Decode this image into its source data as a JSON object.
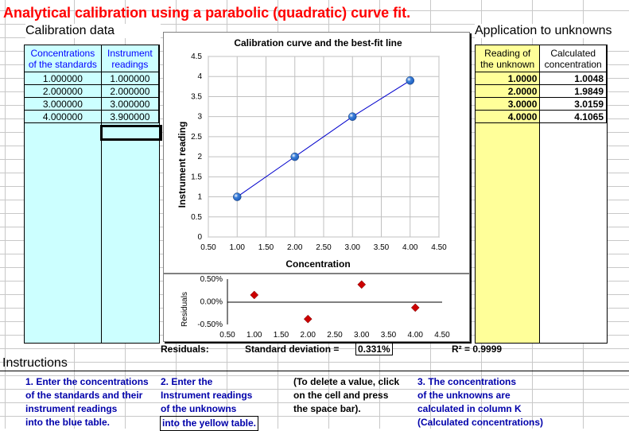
{
  "title": "Analytical calibration using a parabolic (quadratic) curve fit.",
  "calibration": {
    "header": "Calibration data",
    "col1_line1": "Concentrations",
    "col1_line2": "of the standards",
    "col2_line1": "Instrument",
    "col2_line2": "readings",
    "rows": [
      {
        "conc": "1.000000",
        "reading": "1.000000"
      },
      {
        "conc": "2.000000",
        "reading": "2.000000"
      },
      {
        "conc": "3.000000",
        "reading": "3.000000"
      },
      {
        "conc": "4.000000",
        "reading": "3.900000"
      }
    ],
    "colors": {
      "fill": "#ccffff"
    }
  },
  "unknowns": {
    "header": "Application to unknowns",
    "col1_line1": "Reading of",
    "col1_line2": "the unknown",
    "col2_line1": "Calculated",
    "col2_line2": "concentration",
    "rows": [
      {
        "reading": "1.0000",
        "calc": "1.0048"
      },
      {
        "reading": "2.0000",
        "calc": "1.9849"
      },
      {
        "reading": "3.0000",
        "calc": "3.0159"
      },
      {
        "reading": "4.0000",
        "calc": "4.1065"
      }
    ],
    "colors": {
      "fill": "#ffff99"
    }
  },
  "stats": {
    "residuals_label": "Residuals:",
    "stddev_label": "Standard  deviation =",
    "stddev_value": "0.331%",
    "r2_label": "R² = 0.9999"
  },
  "instructions": {
    "header": "Instructions",
    "col1": [
      "1. Enter the concentrations",
      "of the standards and their",
      "instrument readings",
      "into the blue table."
    ],
    "col2": [
      "2. Enter the",
      "Instrument readings",
      "of the unknowns",
      "into the yellow table."
    ],
    "col3": [
      "(To delete a value, click",
      "on the cell and press",
      "the space bar)."
    ],
    "col4": [
      "3. The concentrations",
      "of the unknowns are",
      "calculated in column K",
      "(Calculated concentrations)"
    ]
  },
  "chart_data": [
    {
      "type": "scatter",
      "title": "Calibration curve and the best-fit line",
      "xlabel": "Concentration",
      "ylabel": "Instrument reading",
      "xlim": [
        0.5,
        4.5
      ],
      "ylim": [
        0,
        4.5
      ],
      "xticks": [
        "0.50",
        "1.00",
        "1.50",
        "2.00",
        "2.50",
        "3.00",
        "3.50",
        "4.00",
        "4.50"
      ],
      "yticks": [
        "0",
        "0.5",
        "1",
        "1.5",
        "2",
        "2.5",
        "3",
        "3.5",
        "4",
        "4.5"
      ],
      "grid": true,
      "series": [
        {
          "x": [
            1,
            2,
            3,
            4
          ],
          "y": [
            1.0,
            2.0,
            3.0,
            3.9
          ]
        }
      ],
      "fit_line": {
        "x": [
          1,
          2,
          3,
          4
        ],
        "y": [
          1.0,
          2.0,
          3.0,
          3.9
        ]
      },
      "colors": {
        "point": "#1f5fbf",
        "line": "#0000cc"
      }
    },
    {
      "type": "scatter",
      "title": "",
      "xlabel": "",
      "ylabel": "Residuals",
      "xlim": [
        0.5,
        4.5
      ],
      "ylim": [
        -0.5,
        0.5
      ],
      "xticks": [
        "0.50",
        "1.00",
        "1.50",
        "2.00",
        "2.50",
        "3.00",
        "3.50",
        "4.00",
        "4.50"
      ],
      "yticks": [
        "-0.50%",
        "0.00%",
        "0.50%"
      ],
      "grid": false,
      "series": [
        {
          "x": [
            1,
            2,
            3,
            4
          ],
          "y": [
            0.15,
            -0.38,
            0.38,
            -0.13
          ]
        }
      ],
      "colors": {
        "point": "#cc0000"
      }
    }
  ]
}
